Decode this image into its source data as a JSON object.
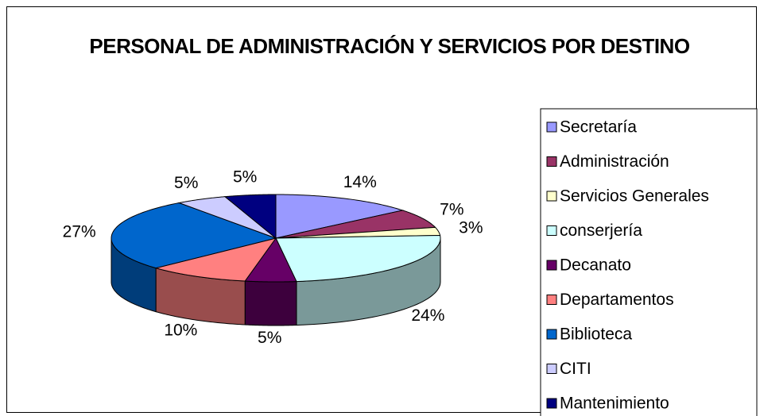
{
  "chart_data": {
    "type": "pie3d",
    "title": "PERSONAL DE ADMINISTRACIÓN Y SERVICIOS POR DESTINO",
    "categories": [
      "Secretaría",
      "Administración",
      "Servicios Generales",
      "conserjería",
      "Decanato",
      "Departamentos",
      "Biblioteca",
      "CITI",
      "Mantenimiento"
    ],
    "values": [
      14,
      7,
      3,
      24,
      5,
      10,
      27,
      5,
      5
    ],
    "value_labels": [
      "14%",
      "7%",
      "3%",
      "24%",
      "5%",
      "10%",
      "27%",
      "5%",
      "5%"
    ],
    "colors": [
      "#9999ff",
      "#993366",
      "#ffffcc",
      "#ccffff",
      "#660066",
      "#ff8080",
      "#0066cc",
      "#ccccff",
      "#000080"
    ],
    "legend": "right"
  }
}
